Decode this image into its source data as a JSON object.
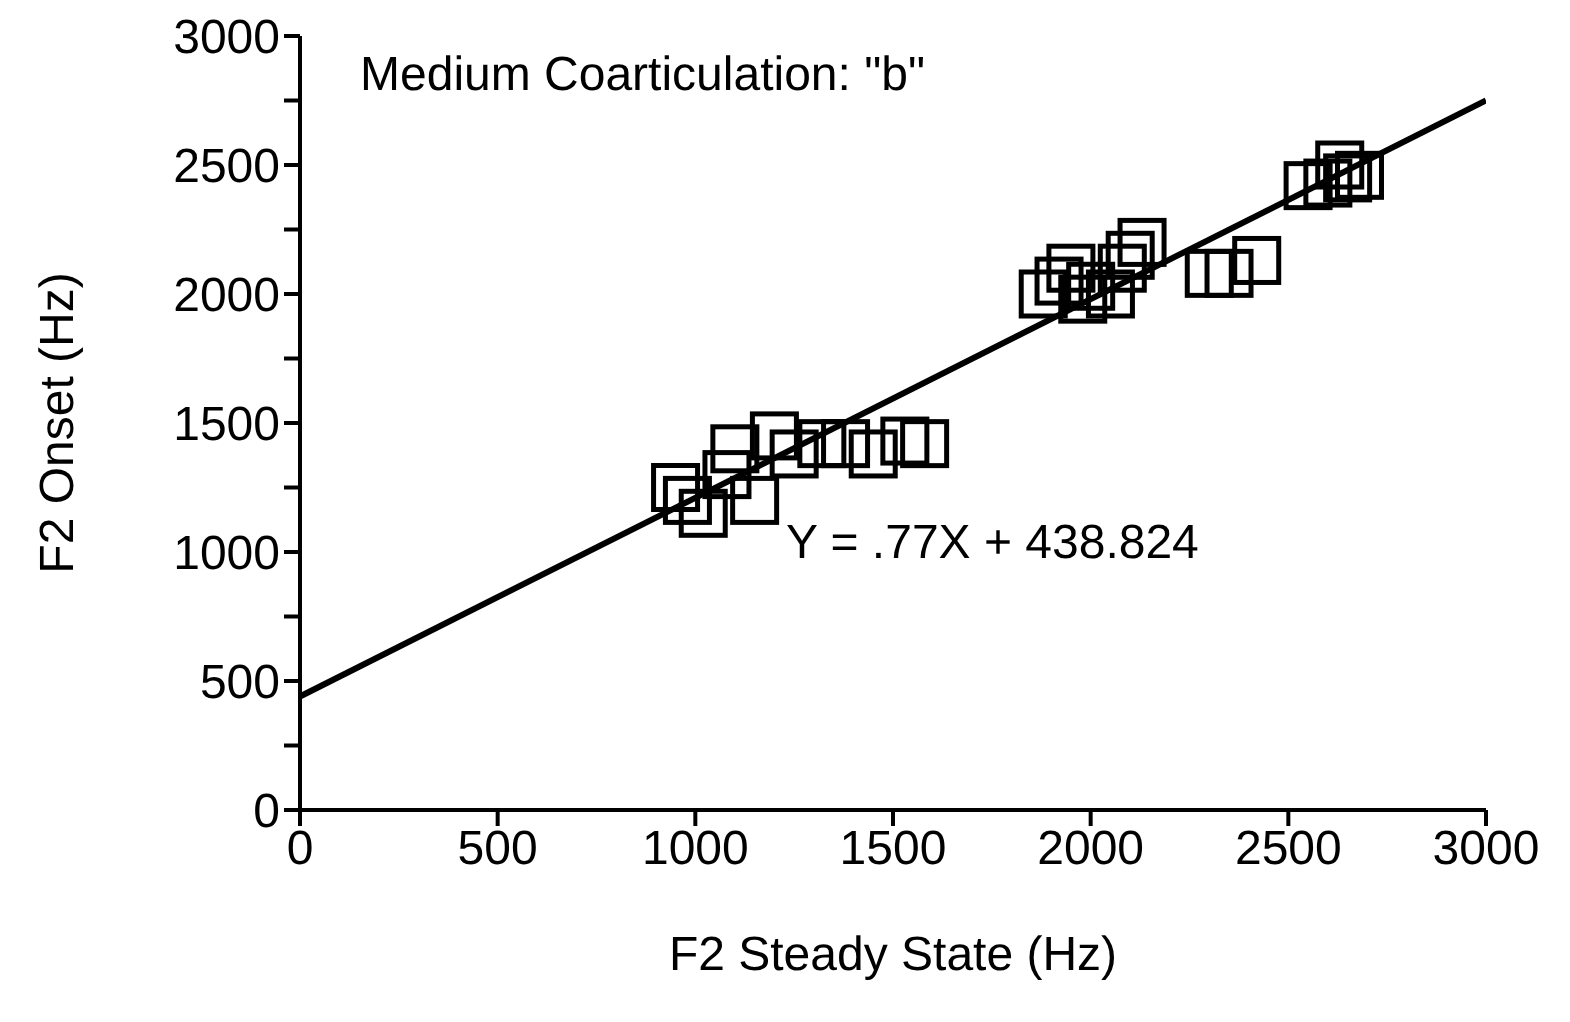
{
  "chart_data": {
    "type": "scatter",
    "xlabel": "F2 Steady State (Hz)",
    "ylabel": "F2 Onset (Hz)",
    "annotations": [
      "Medium Coarticulation: \"b\"",
      "Y = .77X + 438.824"
    ],
    "xlim": [
      0,
      3000
    ],
    "xticks": [
      0,
      500,
      1000,
      1500,
      2000,
      2500,
      3000
    ],
    "ylim": [
      0,
      3000
    ],
    "yticks": [
      0,
      {
        "value": 250,
        "label": null
      },
      500,
      {
        "value": 750,
        "label": null
      },
      1000,
      {
        "value": 1250,
        "label": null
      },
      1500,
      {
        "value": 1750,
        "label": null
      },
      2000,
      {
        "value": 2250,
        "label": null
      },
      2500,
      {
        "value": 2750,
        "label": null
      },
      3000
    ],
    "marker": "square",
    "series": [
      {
        "color": "#000000",
        "x": [
          950,
          980,
          1020,
          1080,
          1100,
          1150,
          1200,
          1250,
          1320,
          1380,
          1450,
          1530,
          1580
        ],
        "values": [
          1250,
          1200,
          1150,
          1300,
          1400,
          1200,
          1450,
          1380,
          1420,
          1420,
          1380,
          1430,
          1420
        ]
      },
      {
        "color": "#000000",
        "x": [
          1880,
          1920,
          1950,
          1980,
          2000,
          2050,
          2080,
          2100,
          2130,
          2300,
          2350,
          2420
        ],
        "values": [
          2000,
          2050,
          2100,
          1980,
          2030,
          2000,
          2100,
          2150,
          2200,
          2080,
          2080,
          2130
        ]
      },
      {
        "color": "#000000",
        "x": [
          2550,
          2600,
          2630,
          2650,
          2680
        ],
        "values": [
          2420,
          2430,
          2500,
          2450,
          2460
        ]
      },
      {
        "type": "line",
        "color": "#000000",
        "x": [
          0,
          3000
        ],
        "values": [
          440,
          2750
        ],
        "marker": "none"
      }
    ]
  }
}
